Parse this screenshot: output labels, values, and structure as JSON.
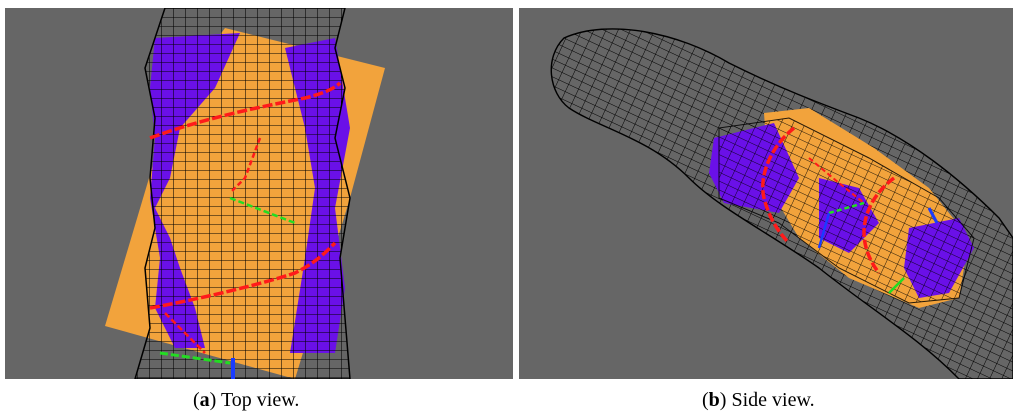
{
  "figure": {
    "panels": [
      {
        "label": "a",
        "caption_prefix": "(",
        "caption_label": "a",
        "caption_suffix": ") Top view."
      },
      {
        "label": "b",
        "caption_prefix": "(",
        "caption_label": "b",
        "caption_suffix": ") Side view."
      }
    ],
    "colors": {
      "background": "#666666",
      "wireframe": "#000000",
      "surface_orange": "#f2a33c",
      "surface_purple": "#6a10e8",
      "curve_red": "#ff1a1a",
      "axis_green": "#22dd22",
      "axis_blue": "#1a3cff"
    }
  }
}
